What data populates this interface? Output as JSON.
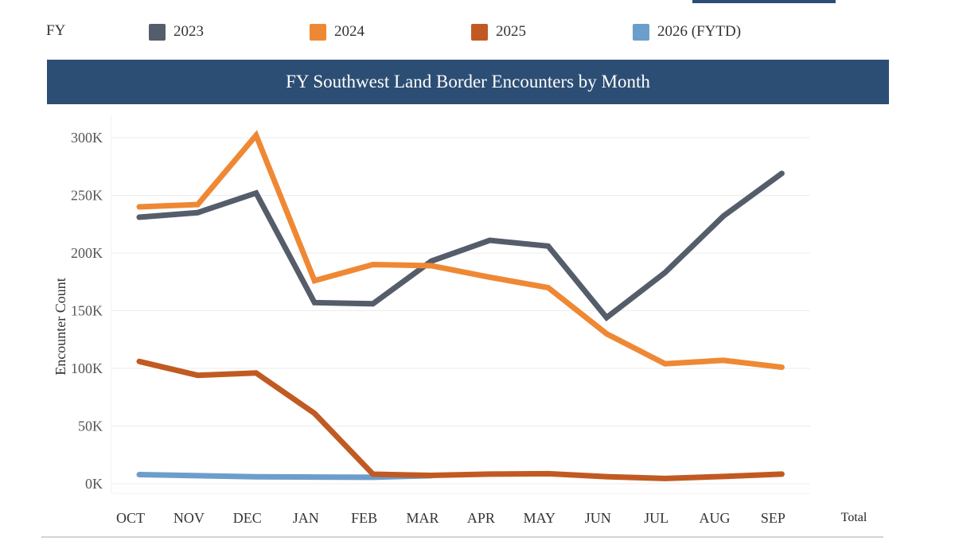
{
  "legend": {
    "title": "FY",
    "items": [
      {
        "label": "2023",
        "color": "#555d6b"
      },
      {
        "label": "2024",
        "color": "#ef8834"
      },
      {
        "label": "2025",
        "color": "#c15a22"
      },
      {
        "label": "2026 (FYTD)",
        "color": "#6c9ecb"
      }
    ]
  },
  "banner": {
    "title": "FY Southwest Land Border Encounters by Month"
  },
  "chart_data": {
    "type": "line",
    "title": "FY Southwest Land Border Encounters by Month",
    "xlabel": "",
    "ylabel": "Encounter Count",
    "categories": [
      "OCT",
      "NOV",
      "DEC",
      "JAN",
      "FEB",
      "MAR",
      "APR",
      "MAY",
      "JUN",
      "JUL",
      "AUG",
      "SEP"
    ],
    "extra_column_label": "Total",
    "yticks": [
      0,
      50000,
      100000,
      150000,
      200000,
      250000,
      300000
    ],
    "ytick_labels": [
      "0K",
      "50K",
      "100K",
      "150K",
      "200K",
      "250K",
      "300K"
    ],
    "ylim": [
      0,
      300000
    ],
    "grid": true,
    "legend_position": "top",
    "series": [
      {
        "name": "2023",
        "color": "#555d6b",
        "values": [
          231000,
          235000,
          252000,
          157000,
          156000,
          193000,
          211000,
          206000,
          144000,
          183000,
          232000,
          269000
        ]
      },
      {
        "name": "2024",
        "color": "#ef8834",
        "values": [
          240000,
          242000,
          302000,
          176000,
          190000,
          189000,
          179000,
          170000,
          130000,
          104000,
          107000,
          101000
        ]
      },
      {
        "name": "2025",
        "color": "#c15a22",
        "values": [
          106000,
          94000,
          96000,
          61000,
          8300,
          7200,
          8400,
          8700,
          6100,
          4600,
          6300,
          8400
        ]
      },
      {
        "name": "2026 (FYTD)",
        "color": "#6c9ecb",
        "values": [
          7900,
          7000,
          6000,
          5800,
          5600,
          7000
        ]
      }
    ]
  }
}
